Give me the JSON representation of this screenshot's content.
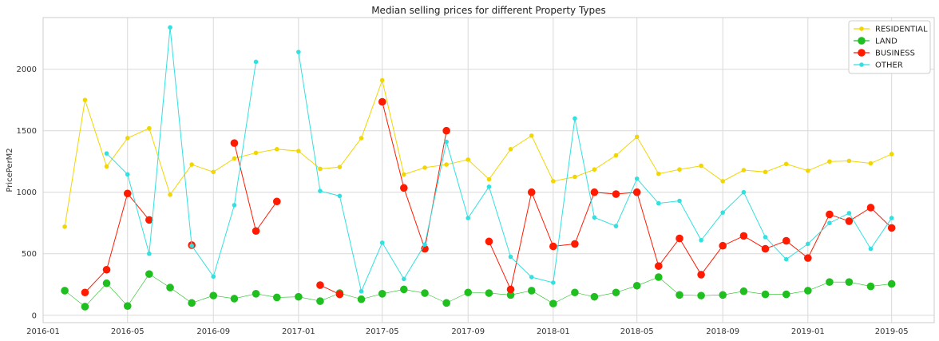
{
  "chart_data": {
    "type": "line",
    "title": "Median selling prices for different Property Types",
    "xlabel": "",
    "ylabel": "PricePerM2",
    "xlim": [
      "2016-01-01",
      "2019-07-01"
    ],
    "ylim": [
      -60,
      2420
    ],
    "grid": true,
    "legend_position": "top-right",
    "x_ticks": [
      "2016-01",
      "2016-05",
      "2016-09",
      "2017-01",
      "2017-05",
      "2017-09",
      "2018-01",
      "2018-05",
      "2018-09",
      "2019-01",
      "2019-05"
    ],
    "y_ticks": [
      0,
      500,
      1000,
      1500,
      2000
    ],
    "x": [
      "2016-02",
      "2016-03",
      "2016-04",
      "2016-05",
      "2016-06",
      "2016-07",
      "2016-08",
      "2016-09",
      "2016-10",
      "2016-11",
      "2016-12",
      "2017-01",
      "2017-02",
      "2017-03",
      "2017-04",
      "2017-05",
      "2017-06",
      "2017-07",
      "2017-08",
      "2017-09",
      "2017-10",
      "2017-11",
      "2017-12",
      "2018-01",
      "2018-02",
      "2018-03",
      "2018-04",
      "2018-05",
      "2018-06",
      "2018-07",
      "2018-08",
      "2018-09",
      "2018-10",
      "2018-11",
      "2018-12",
      "2019-01",
      "2019-02",
      "2019-03",
      "2019-04",
      "2019-05"
    ],
    "series": [
      {
        "name": "RESIDENTIAL",
        "color": "#f2d600",
        "marker_size": "small",
        "values": [
          720,
          1750,
          1210,
          1440,
          1520,
          980,
          1225,
          1165,
          1275,
          1320,
          1350,
          1335,
          1190,
          1205,
          1440,
          1910,
          1145,
          1200,
          1225,
          1265,
          1105,
          1350,
          1460,
          1090,
          1125,
          1185,
          1300,
          1450,
          1150,
          1185,
          1215,
          1090,
          1180,
          1165,
          1230,
          1175,
          1250,
          1255,
          1235,
          1310
        ]
      },
      {
        "name": "LAND",
        "color": "#1fbf1f",
        "marker_size": "large",
        "values": [
          200,
          70,
          260,
          75,
          335,
          225,
          100,
          160,
          135,
          175,
          145,
          150,
          115,
          180,
          130,
          175,
          210,
          180,
          100,
          185,
          180,
          165,
          200,
          95,
          185,
          150,
          185,
          240,
          310,
          165,
          160,
          165,
          195,
          170,
          170,
          200,
          270,
          270,
          235,
          255
        ]
      },
      {
        "name": "BUSINESS",
        "color": "#ff1a00",
        "marker_size": "large",
        "values": [
          null,
          185,
          370,
          990,
          775,
          null,
          570,
          null,
          1400,
          685,
          925,
          null,
          245,
          170,
          null,
          1735,
          1035,
          540,
          1500,
          null,
          600,
          210,
          1000,
          560,
          580,
          1000,
          985,
          1000,
          400,
          625,
          330,
          565,
          645,
          540,
          605,
          465,
          820,
          765,
          875,
          710
        ]
      },
      {
        "name": "OTHER",
        "color": "#33e0e0",
        "marker_size": "small",
        "values": [
          null,
          null,
          1315,
          1145,
          500,
          2340,
          565,
          315,
          895,
          2060,
          null,
          2140,
          1010,
          970,
          195,
          590,
          295,
          575,
          1410,
          790,
          1045,
          475,
          310,
          265,
          1600,
          795,
          725,
          1110,
          910,
          930,
          610,
          835,
          1000,
          635,
          455,
          580,
          750,
          830,
          540,
          790
        ]
      }
    ]
  }
}
